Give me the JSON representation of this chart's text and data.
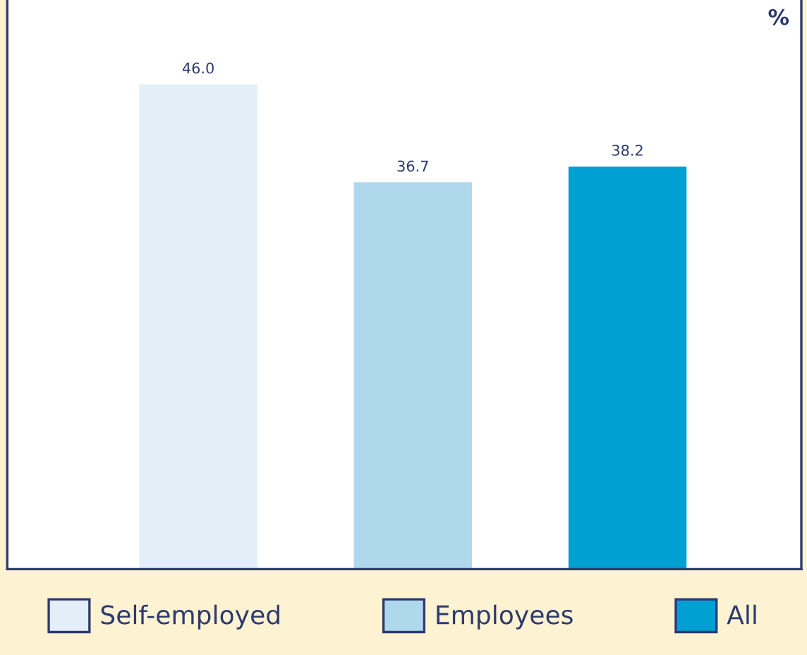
{
  "chart_data": {
    "type": "bar",
    "ylabel": "%",
    "categories": [
      null,
      null,
      null
    ],
    "stacked": true,
    "ylim": [
      0,
      54
    ],
    "legend": "bottom",
    "grid": false,
    "series": [
      {
        "name": "Self-employed",
        "color": "#e2eff8",
        "values": [
          46.0,
          null,
          null
        ],
        "value_labels": [
          "46.0",
          null,
          null
        ]
      },
      {
        "name": "Employees",
        "color": "#afd8ec",
        "values": [
          null,
          36.7,
          null
        ],
        "value_labels": [
          null,
          "36.7",
          null
        ]
      },
      {
        "name": "All",
        "color": "#00a0d2",
        "values": [
          null,
          null,
          38.2
        ],
        "value_labels": [
          null,
          null,
          "38.2"
        ]
      }
    ]
  }
}
